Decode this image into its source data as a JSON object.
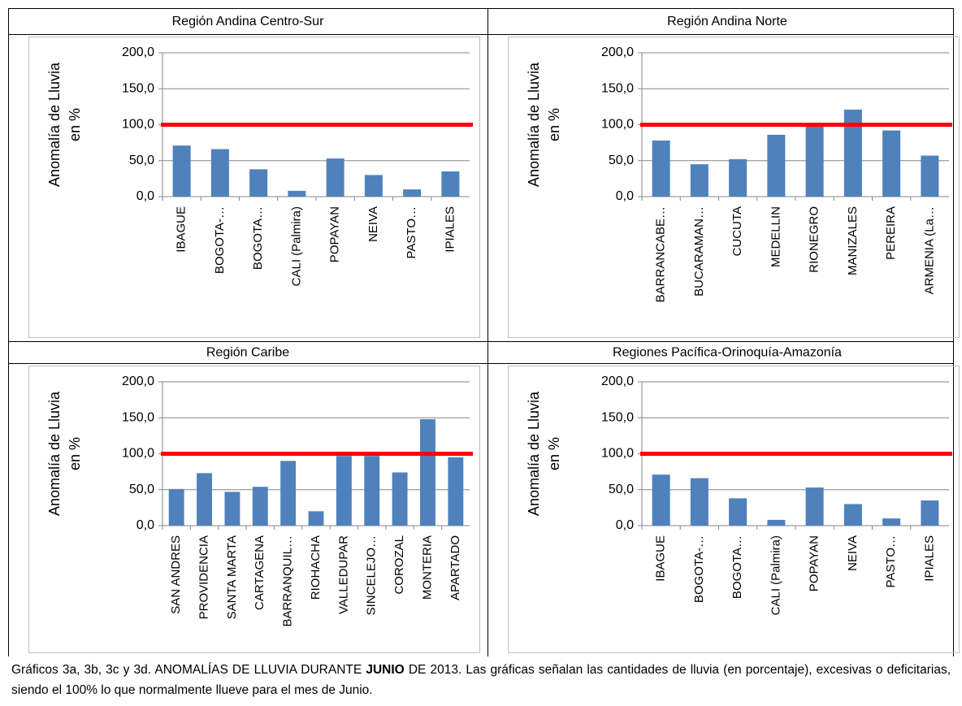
{
  "chart_data": [
    {
      "type": "bar",
      "title": "Región Andina Centro-Sur",
      "ylabel_lines": [
        "Anomalía de Lluvia",
        "en %"
      ],
      "categories": [
        "IBAGUE",
        "BOGOTA-…",
        "BOGOTA…",
        "CALI (Palmira)",
        "POPAYAN",
        "NEIVA",
        "PASTO…",
        "IPIALES"
      ],
      "values": [
        71,
        66,
        38,
        8,
        53,
        30,
        10,
        35
      ],
      "color": "#4f81bd",
      "ylim": [
        0,
        200
      ],
      "yticks": [
        {
          "value": 0,
          "label": "0,0"
        },
        {
          "value": 50,
          "label": "50,0"
        },
        {
          "value": 100,
          "label": "100,0"
        },
        {
          "value": 150,
          "label": "150,0"
        },
        {
          "value": 200,
          "label": "200,0"
        }
      ],
      "grid": true,
      "reference_line": 100,
      "reference_color": "#ff0000"
    },
    {
      "type": "bar",
      "title": "Región Andina Norte",
      "ylabel_lines": [
        "Anomalía de Lluvia",
        "en %"
      ],
      "categories": [
        "BARRANCABE…",
        "BUCARAMAN…",
        "CUCUTA",
        "MEDELLIN",
        "RIONEGRO",
        "MANIZALES",
        "PEREIRA",
        "ARMENIA (La…"
      ],
      "values": [
        78,
        45,
        52,
        86,
        101,
        121,
        92,
        57
      ],
      "color": "#4f81bd",
      "ylim": [
        0,
        200
      ],
      "yticks": [
        {
          "value": 0,
          "label": "0,0"
        },
        {
          "value": 50,
          "label": "50,0"
        },
        {
          "value": 100,
          "label": "100,0"
        },
        {
          "value": 150,
          "label": "150,0"
        },
        {
          "value": 200,
          "label": "200,0"
        }
      ],
      "grid": true,
      "reference_line": 100,
      "reference_color": "#ff0000"
    },
    {
      "type": "bar",
      "title": "Región Caribe",
      "ylabel_lines": [
        "Anomalía de Lluvia",
        "en %"
      ],
      "categories": [
        "SAN ANDRES",
        "PROVIDENCIA",
        "SANTA MARTA",
        "CARTAGENA",
        "BARRANQUIL…",
        "RIOHACHA",
        "VALLEDUPAR",
        "SINCELEJO…",
        "COROZAL",
        "MONTERIA",
        "APARTADO"
      ],
      "values": [
        51,
        73,
        47,
        54,
        90,
        20,
        97,
        97,
        74,
        148,
        95
      ],
      "color": "#4f81bd",
      "ylim": [
        0,
        200
      ],
      "yticks": [
        {
          "value": 0,
          "label": "0,0"
        },
        {
          "value": 50,
          "label": "50,0"
        },
        {
          "value": 100,
          "label": "100,0"
        },
        {
          "value": 150,
          "label": "150,0"
        },
        {
          "value": 200,
          "label": "200,0"
        }
      ],
      "grid": true,
      "reference_line": 100,
      "reference_color": "#ff0000"
    },
    {
      "type": "bar",
      "title": "Regiones Pacífica-Orinoquía-Amazonía",
      "ylabel_lines": [
        "Anomalía de Lluvia",
        "en %"
      ],
      "categories": [
        "IBAGUE",
        "BOGOTA-…",
        "BOGOTA…",
        "CALI (Palmira)",
        "POPAYAN",
        "NEIVA",
        "PASTO…",
        "IPIALES"
      ],
      "values": [
        71,
        66,
        38,
        8,
        53,
        30,
        10,
        35
      ],
      "color": "#4f81bd",
      "ylim": [
        0,
        200
      ],
      "yticks": [
        {
          "value": 0,
          "label": "0,0"
        },
        {
          "value": 50,
          "label": "50,0"
        },
        {
          "value": 100,
          "label": "100,0"
        },
        {
          "value": 150,
          "label": "150,0"
        },
        {
          "value": 200,
          "label": "200,0"
        }
      ],
      "grid": true,
      "reference_line": 100,
      "reference_color": "#ff0000"
    }
  ],
  "caption": {
    "parts": [
      "Gráficos 3a, 3b, 3c y 3d. ANOMALÍAS DE LLUVIA DURANTE ",
      "JUNIO",
      " DE 2013. Las gráficas señalan las cantidades de lluvia (en porcentaje), excesivas o deficitarias, siendo el 100% lo que normalmente llueve para el mes de Junio."
    ]
  }
}
